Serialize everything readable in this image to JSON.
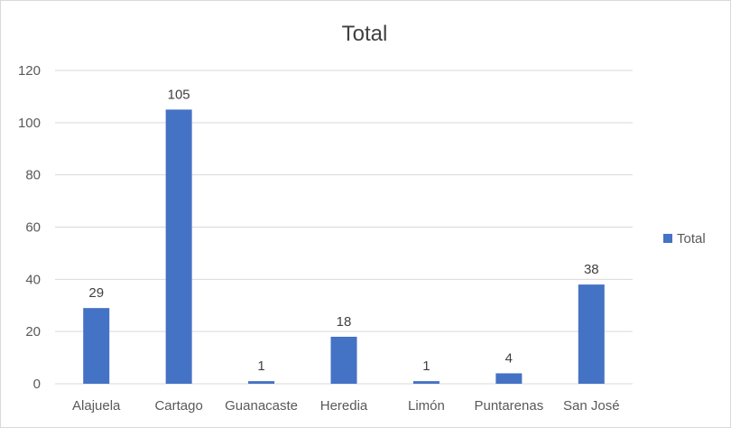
{
  "chart_data": {
    "type": "bar",
    "title": "Total",
    "xlabel": "",
    "ylabel": "",
    "categories": [
      "Alajuela",
      "Cartago",
      "Guanacaste",
      "Heredia",
      "Limón",
      "Puntarenas",
      "San José"
    ],
    "series": [
      {
        "name": "Total",
        "values": [
          29,
          105,
          1,
          18,
          1,
          4,
          38
        ],
        "color": "#4472c4"
      }
    ],
    "ylim": [
      0,
      120
    ],
    "yticks": [
      0,
      20,
      40,
      60,
      80,
      100,
      120
    ],
    "grid": true,
    "legend": "right",
    "data_labels": true
  }
}
